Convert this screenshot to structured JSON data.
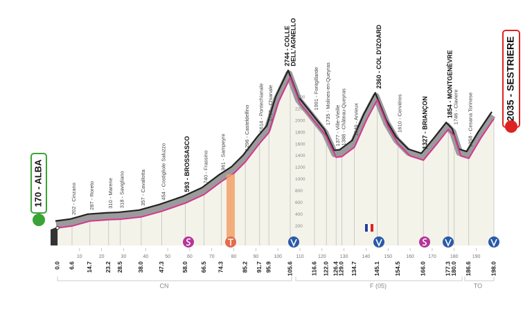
{
  "chart_data": {
    "type": "area",
    "start": {
      "label": "170 - ALBA"
    },
    "finish": {
      "label": "2035 - SESTRIERE"
    },
    "x": [
      0,
      6.6,
      14.7,
      23.2,
      28.5,
      38,
      47.3,
      58,
      66.5,
      74.3,
      80,
      85.2,
      91.7,
      95.9,
      100,
      105.6,
      110,
      116.6,
      122,
      126.4,
      129,
      134.7,
      140,
      145.1,
      150,
      154.5,
      160,
      166,
      172,
      177.3,
      180,
      183,
      186.6,
      192,
      198
    ],
    "values": [
      170,
      202,
      287,
      310,
      318,
      357,
      454,
      593,
      740,
      961,
      1100,
      1296,
      1614,
      1797,
      2300,
      2744,
      2300,
      1991,
      1735,
      1377,
      1388,
      1549,
      2000,
      2360,
      1900,
      1610,
      1400,
      1327,
      1600,
      1854,
      1746,
      1400,
      1358,
      1700,
      2035
    ],
    "line_color": "#d6358f",
    "band_color": "#9b9b9b",
    "fill_color": "#f4f3ea",
    "xlim": [
      0,
      198
    ],
    "ylim": [
      0,
      2800
    ],
    "xticks": [
      10,
      20,
      30,
      40,
      50,
      60,
      70,
      80,
      90,
      100,
      110,
      120,
      130,
      140,
      150,
      160,
      170,
      180,
      190
    ],
    "yticks": [
      200,
      400,
      600,
      800,
      1000,
      1200,
      1400,
      1600,
      1800,
      2000,
      2200,
      2400
    ],
    "waypoints": [
      {
        "km": {
          "value": 0,
          "label": "0.0"
        }
      },
      {
        "km": 6.6,
        "label": "202 - Cinzano"
      },
      {
        "km": 14.7,
        "label": "287 - Roreto"
      },
      {
        "km": 23.2,
        "label": "310 - Marene"
      },
      {
        "km": 28.5,
        "label": "318 - Savigliano"
      },
      {
        "km": {
          "value": 38,
          "label": "38.0"
        },
        "label": "357 - Cavallotta"
      },
      {
        "km": 47.3,
        "label": "454 - Costigliole Saluzzo"
      },
      {
        "km": {
          "value": 58,
          "label": "58.0"
        },
        "label": "593 - BROSSASCO",
        "bold": true
      },
      {
        "km": 66.5,
        "label": "740 - Frassino"
      },
      {
        "km": 74.3,
        "label": "961 - Sampeyre"
      },
      {
        "km": 85.2,
        "label": "1296 - Casteldelfino"
      },
      {
        "km": 91.7,
        "label": "1614 - Pontechianale"
      },
      {
        "km": 95.9,
        "label": "1797 - Chianale"
      },
      {
        "km": 105.6,
        "label": [
          "2744 - COLLE",
          "DELL'AGNELLO"
        ],
        "bold": true
      },
      {
        "km": 116.6,
        "label": "1991 - Fontgillarde"
      },
      {
        "km": {
          "value": 122,
          "label": "122.0"
        },
        "label": "1735 - Molines-en-Queyras"
      },
      {
        "km": 126.4,
        "label": "1377 - Ville-Vieille"
      },
      {
        "km": {
          "value": 129,
          "label": "129.0"
        },
        "label": "1388 - Château-Queyras"
      },
      {
        "km": 134.7,
        "label": "1549 - Arvieux"
      },
      {
        "km": 145.1,
        "label": "2360 - COL D'IZOARD",
        "bold": true
      },
      {
        "km": 154.5,
        "label": "1610 - Cervières"
      },
      {
        "km": {
          "value": 166,
          "label": "166.0"
        },
        "label": "1327 - BRIANÇON",
        "bold": true
      },
      {
        "km": 177.3,
        "label": "1854 - MONTGENÈVRE",
        "bold": true
      },
      {
        "km": {
          "value": 180,
          "label": "180.0"
        },
        "label": "1746 - Claviere"
      },
      {
        "km": 186.6,
        "label": "1358 - Cesana Torinese"
      },
      {
        "km": {
          "value": 198,
          "label": "198.0"
        }
      }
    ],
    "regions": [
      "CN",
      "F (05)",
      "TO"
    ]
  }
}
